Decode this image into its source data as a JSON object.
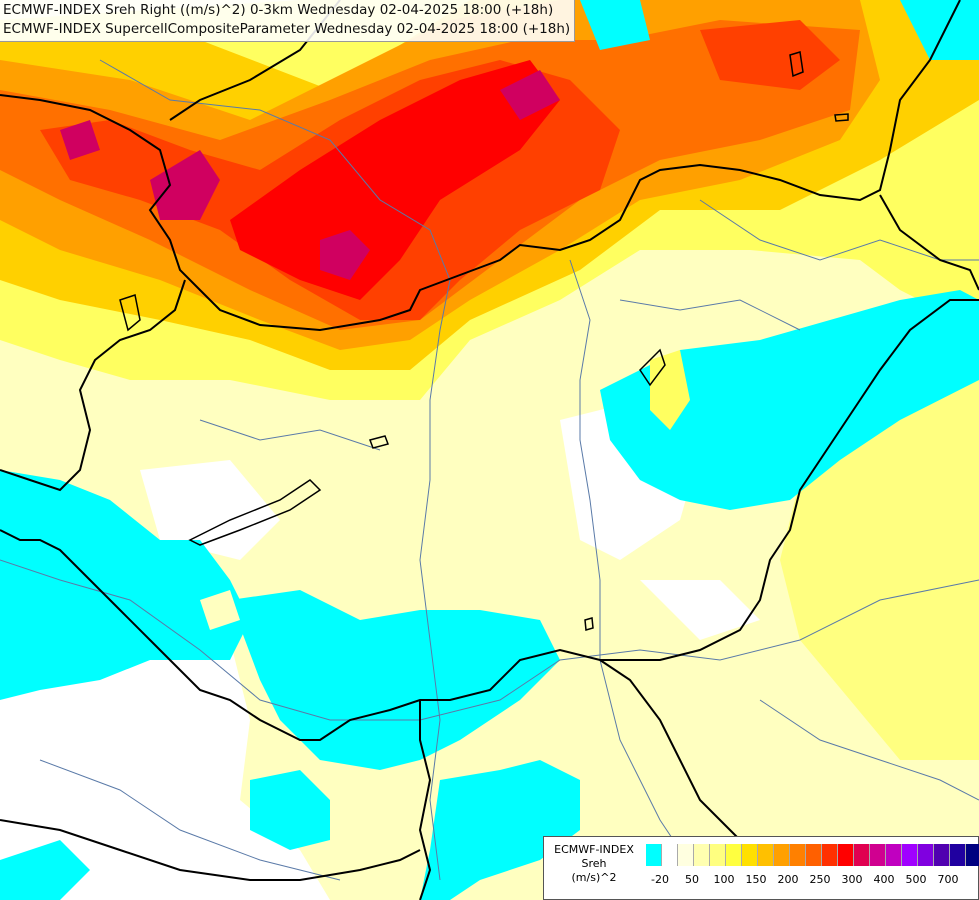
{
  "header": {
    "line1": "ECMWF-INDEX Sreh Right ((m/s)^2) 0-3km Wednesday 02-04-2025 18:00 (+18h)",
    "line2": "ECMWF-INDEX SupercellCompositeParameter Wednesday 02-04-2025 18:00 (+18h)"
  },
  "legend": {
    "title_line1": "ECMWF-INDEX",
    "title_line2": "Sreh",
    "title_line3": "(m/s)^2",
    "colors": [
      "#00ffff",
      "#ffffff",
      "#ffffe0",
      "#ffffb0",
      "#ffff80",
      "#ffff40",
      "#ffe000",
      "#ffc000",
      "#ffa000",
      "#ff8000",
      "#ff6000",
      "#ff3000",
      "#ff0000",
      "#e00050",
      "#d00090",
      "#c000c0",
      "#a000ff",
      "#8000e0",
      "#5000b0",
      "#2000a0",
      "#000080"
    ],
    "labels": [
      "-20",
      "50",
      "100",
      "150",
      "200",
      "250",
      "300",
      "400",
      "500",
      "700"
    ]
  },
  "map": {
    "colors": {
      "cyan": "#00ffff",
      "white": "#ffffff",
      "pale_yellow": "#ffffc0",
      "yellow": "#ffff60",
      "gold": "#ffd000",
      "orange": "#ffa000",
      "dark_orange": "#ff7000",
      "red_orange": "#ff4000",
      "red": "#ff0000",
      "magenta": "#d00060",
      "border": "#000000",
      "river": "#5a7aa8"
    }
  }
}
